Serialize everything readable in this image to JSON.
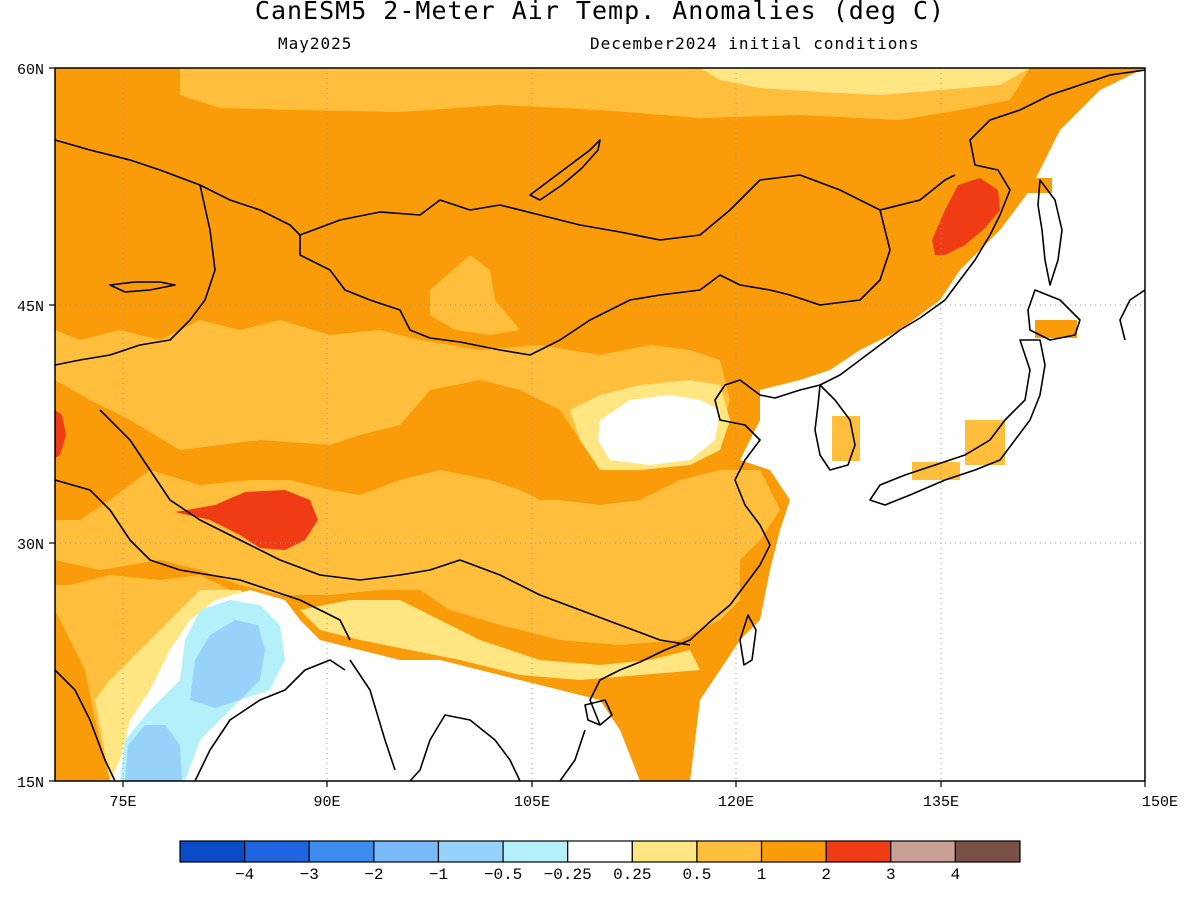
{
  "header": {
    "title": "CanESM5 2-Meter Air Temp. Anomalies (deg C)",
    "valid_month": "May2025",
    "initial_conditions": "December2024 initial conditions"
  },
  "map": {
    "lon_range": [
      70,
      150
    ],
    "lat_range": [
      15,
      60
    ],
    "lon_ticks": [
      "75E",
      "90E",
      "105E",
      "120E",
      "135E",
      "150E"
    ],
    "lat_ticks": [
      "60N",
      "45N",
      "30N",
      "15N"
    ],
    "gridlines": "dotted",
    "colors": {
      "ocean_nodata": "#ffffff",
      "lt_-0.25": "#b4f0fa",
      "lt_-0.5": "#96d2fa",
      "0.25_0.5": "#ffe682",
      "0.5_1": "#ffbe3c",
      "1_2": "#fa9b0a",
      "2_3": "#f03c14"
    }
  },
  "colorbar": {
    "labels": [
      "−4",
      "−3",
      "−2",
      "−1",
      "−0.5",
      "−0.25",
      "0.25",
      "0.5",
      "1",
      "2",
      "3",
      "4"
    ],
    "colors": [
      "#0a4bc8",
      "#1e64e1",
      "#3c8cf0",
      "#78b9fa",
      "#96d2fa",
      "#b4f0fa",
      "#ffffff",
      "#ffe682",
      "#ffbe3c",
      "#fa9b0a",
      "#f03c14",
      "#c8a096",
      "#785046"
    ]
  }
}
